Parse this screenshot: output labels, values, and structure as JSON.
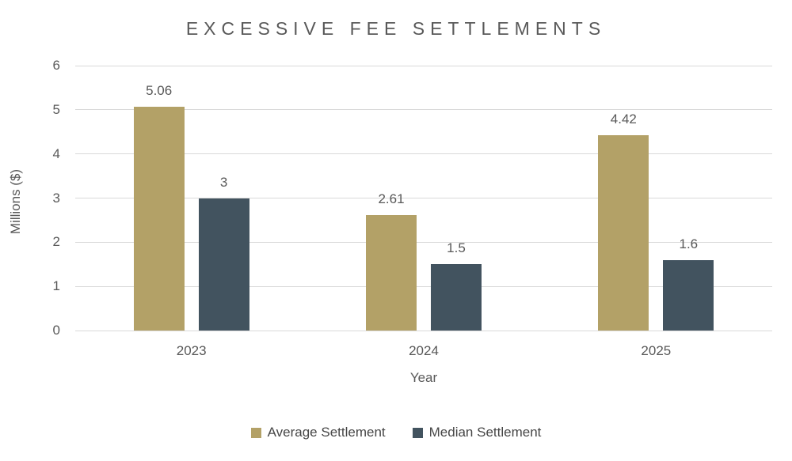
{
  "chart_data": {
    "type": "bar",
    "title": "EXCESSIVE FEE SETTLEMENTS",
    "categories": [
      "2023",
      "2024",
      "2025"
    ],
    "series": [
      {
        "name": "Average Settlement",
        "color": "#B3A167",
        "values": [
          5.06,
          2.61,
          4.42
        ]
      },
      {
        "name": "Median Settlement",
        "color": "#42535F",
        "values": [
          3,
          1.5,
          1.6
        ]
      }
    ],
    "data_labels": [
      [
        "5.06",
        "2.61",
        "4.42"
      ],
      [
        "3",
        "1.5",
        "1.6"
      ]
    ],
    "xlabel": "Year",
    "ylabel": "Millions ($)",
    "ylim": [
      0,
      6
    ],
    "ytick_interval": 1,
    "ytick_labels": [
      "0",
      "1",
      "2",
      "3",
      "4",
      "5",
      "6"
    ],
    "grid": true,
    "legend_position": "bottom",
    "colors": {
      "text": "#595959",
      "gridline": "#D9D9D9",
      "background": "#FFFFFF"
    }
  }
}
